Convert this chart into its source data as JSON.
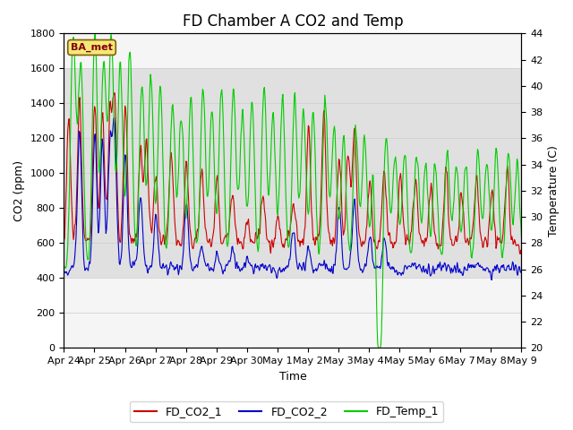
{
  "title": "FD Chamber A CO2 and Temp",
  "xlabel": "Time",
  "ylabel_left": "CO2 (ppm)",
  "ylabel_right": "Temperature (C)",
  "ylim_left": [
    0,
    1800
  ],
  "ylim_right": [
    20,
    44
  ],
  "yticks_left": [
    0,
    200,
    400,
    600,
    800,
    1000,
    1200,
    1400,
    1600,
    1800
  ],
  "yticks_right": [
    20,
    22,
    24,
    26,
    28,
    30,
    32,
    34,
    36,
    38,
    40,
    42,
    44
  ],
  "xtick_labels": [
    "Apr 24",
    "Apr 25",
    "Apr 26",
    "Apr 27",
    "Apr 28",
    "Apr 29",
    "Apr 30",
    "May 1",
    "May 2",
    "May 3",
    "May 4",
    "May 5",
    "May 6",
    "May 7",
    "May 8",
    "May 9"
  ],
  "legend_label_box": "BA_met",
  "line_colors": {
    "FD_CO2_1": "#cc0000",
    "FD_CO2_2": "#0000cc",
    "FD_Temp_1": "#00cc00"
  },
  "band_color": "#e0e0e0",
  "background_color": "#f5f5f5",
  "grid_color": "#cccccc",
  "title_fontsize": 12,
  "axis_fontsize": 9,
  "tick_fontsize": 8
}
